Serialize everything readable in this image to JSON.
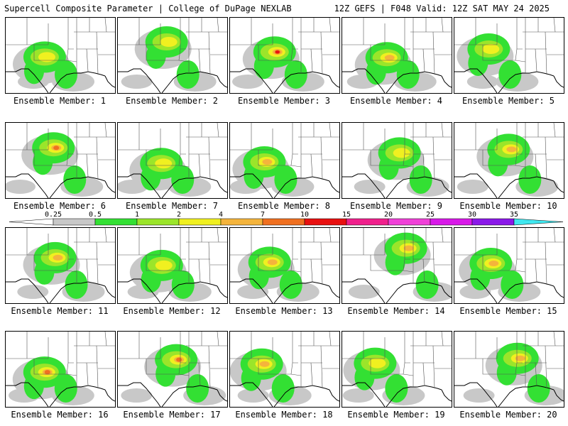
{
  "header": {
    "left": "Supercell Composite Parameter | College of DuPage NEXLAB",
    "right": "12Z GEFS | F048 Valid: 12Z SAT MAY 24 2025"
  },
  "legend": {
    "labels": [
      "0.25",
      "0.5",
      "1",
      "2",
      "4",
      "7",
      "10",
      "15",
      "20",
      "25",
      "30",
      "35"
    ],
    "colors": [
      "#c8c8c8",
      "#33e033",
      "#9be52a",
      "#f0f020",
      "#f4b43c",
      "#f07020",
      "#e81010",
      "#f0208c",
      "#f040d8",
      "#d818e8",
      "#8a18e8",
      "#b070e0",
      "#40e8f0"
    ]
  },
  "members": [
    {
      "label": "Ensemble Member: 1",
      "max": 2
    },
    {
      "label": "Ensemble Member: 2",
      "max": 2
    },
    {
      "label": "Ensemble Member: 3",
      "max": 7
    },
    {
      "label": "Ensemble Member: 4",
      "max": 3
    },
    {
      "label": "Ensemble Member: 5",
      "max": 2
    },
    {
      "label": "Ensemble Member: 6",
      "max": 5
    },
    {
      "label": "Ensemble Member: 7",
      "max": 2
    },
    {
      "label": "Ensemble Member: 8",
      "max": 4
    },
    {
      "label": "Ensemble Member: 9",
      "max": 2
    },
    {
      "label": "Ensemble Member: 10",
      "max": 4
    },
    {
      "label": "Ensemble Member: 11",
      "max": 3
    },
    {
      "label": "Ensemble Member: 12",
      "max": 2
    },
    {
      "label": "Ensemble Member: 13",
      "max": 3
    },
    {
      "label": "Ensemble Member: 14",
      "max": 4
    },
    {
      "label": "Ensemble Member: 15",
      "max": 3
    },
    {
      "label": "Ensemble Member: 16",
      "max": 5
    },
    {
      "label": "Ensemble Member: 17",
      "max": 5
    },
    {
      "label": "Ensemble Member: 18",
      "max": 4
    },
    {
      "label": "Ensemble Member: 19",
      "max": 2
    },
    {
      "label": "Ensemble Member: 20",
      "max": 4
    }
  ]
}
